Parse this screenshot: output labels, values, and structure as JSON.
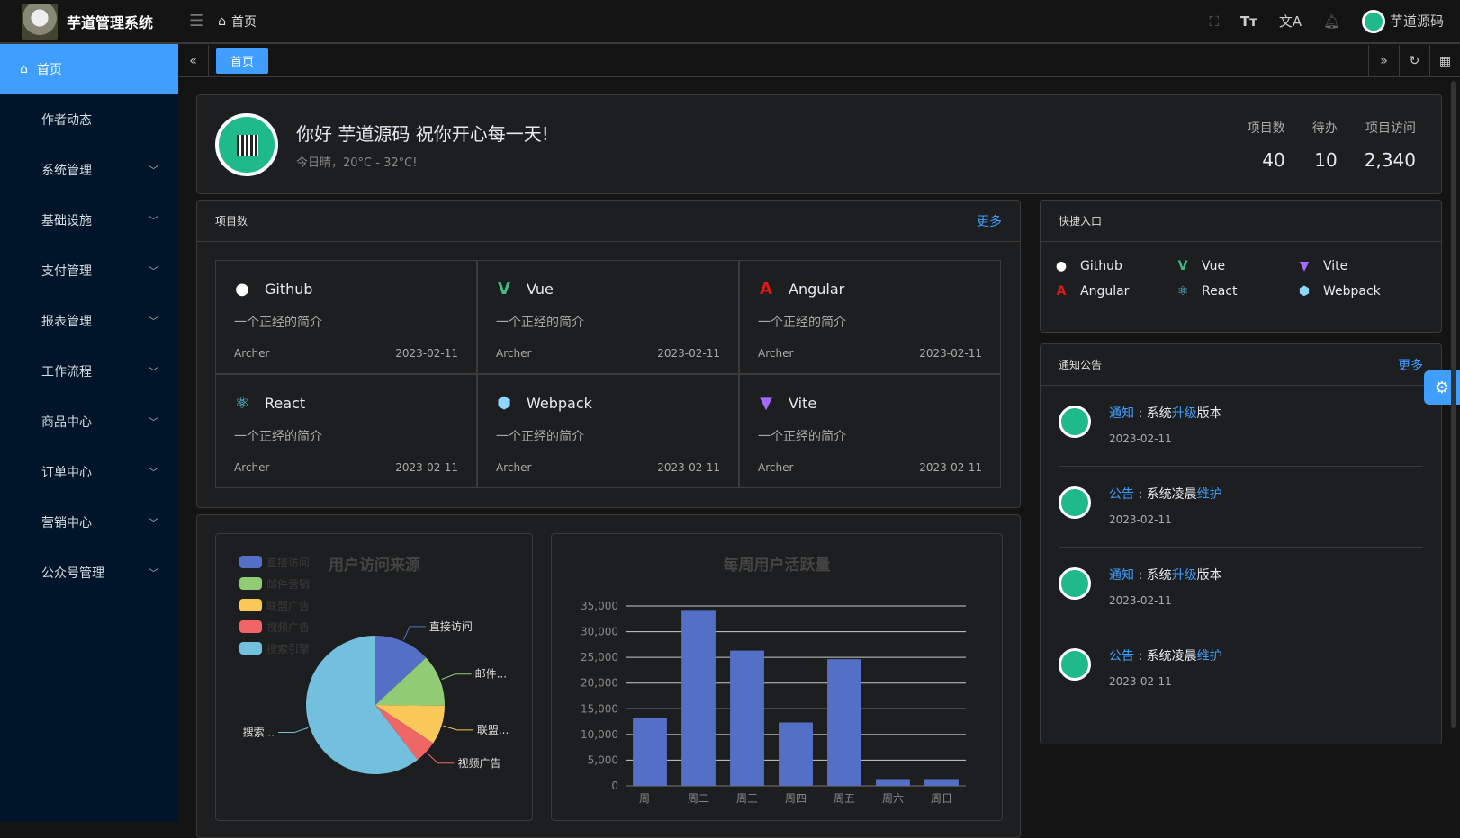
{
  "app": {
    "title": "芋道管理系统"
  },
  "header": {
    "breadcrumb": "首页",
    "user": "芋道源码",
    "icons": [
      "fullscreen-icon",
      "font-size-icon",
      "translate-icon",
      "bell-icon"
    ]
  },
  "sidebar": {
    "items": [
      {
        "label": "首页",
        "active": true
      },
      {
        "label": "作者动态"
      },
      {
        "label": "系统管理",
        "expandable": true
      },
      {
        "label": "基础设施",
        "expandable": true
      },
      {
        "label": "支付管理",
        "expandable": true
      },
      {
        "label": "报表管理",
        "expandable": true
      },
      {
        "label": "工作流程",
        "expandable": true
      },
      {
        "label": "商品中心",
        "expandable": true
      },
      {
        "label": "订单中心",
        "expandable": true
      },
      {
        "label": "营销中心",
        "expandable": true
      },
      {
        "label": "公众号管理",
        "expandable": true
      }
    ]
  },
  "tabs": [
    {
      "label": "首页",
      "active": true
    }
  ],
  "welcome": {
    "greeting": "你好 芋道源码 祝你开心每一天!",
    "weather": "今日晴，20°C - 32°C!",
    "stats": [
      {
        "label": "项目数",
        "value": "40"
      },
      {
        "label": "待办",
        "value": "10"
      },
      {
        "label": "项目访问",
        "value": "2,340"
      }
    ]
  },
  "projects": {
    "title": "项目数",
    "more": "更多",
    "items": [
      {
        "name": "Github",
        "desc": "一个正经的简介",
        "author": "Archer",
        "date": "2023-02-11",
        "icon": "github-icon",
        "color": "#ffffff"
      },
      {
        "name": "Vue",
        "desc": "一个正经的简介",
        "author": "Archer",
        "date": "2023-02-11",
        "icon": "vue-icon",
        "color": "#42b883"
      },
      {
        "name": "Angular",
        "desc": "一个正经的简介",
        "author": "Archer",
        "date": "2023-02-11",
        "icon": "angular-icon",
        "color": "#dd1b16"
      },
      {
        "name": "React",
        "desc": "一个正经的简介",
        "author": "Archer",
        "date": "2023-02-11",
        "icon": "react-icon",
        "color": "#61dafb"
      },
      {
        "name": "Webpack",
        "desc": "一个正经的简介",
        "author": "Archer",
        "date": "2023-02-11",
        "icon": "webpack-icon",
        "color": "#8ed6fb"
      },
      {
        "name": "Vite",
        "desc": "一个正经的简介",
        "author": "Archer",
        "date": "2023-02-11",
        "icon": "vite-icon",
        "color": "#a36bff"
      }
    ]
  },
  "quick": {
    "title": "快捷入口",
    "items": [
      {
        "name": "Github",
        "color": "#ffffff"
      },
      {
        "name": "Vue",
        "color": "#42b883"
      },
      {
        "name": "Vite",
        "color": "#a36bff"
      },
      {
        "name": "Angular",
        "color": "#dd1b16"
      },
      {
        "name": "React",
        "color": "#61dafb"
      },
      {
        "name": "Webpack",
        "color": "#8ed6fb"
      }
    ]
  },
  "notice": {
    "title": "通知公告",
    "more": "更多",
    "items": [
      {
        "type": "通知",
        "pre": "系统",
        "hl": "升级",
        "post": "版本",
        "date": "2023-02-11"
      },
      {
        "type": "公告",
        "pre": "系统凌晨",
        "hl": "维护",
        "post": "",
        "date": "2023-02-11"
      },
      {
        "type": "通知",
        "pre": "系统",
        "hl": "升级",
        "post": "版本",
        "date": "2023-02-11"
      },
      {
        "type": "公告",
        "pre": "系统凌晨",
        "hl": "维护",
        "post": "",
        "date": "2023-02-11"
      }
    ]
  },
  "chart_data": [
    {
      "type": "pie",
      "title": "用户访问来源",
      "legend_position": "top-left",
      "slices": [
        {
          "name": "直接访问",
          "value": 335,
          "color": "#5470c6",
          "label": "直接访问"
        },
        {
          "name": "邮件营销",
          "value": 310,
          "color": "#91cc75",
          "label": "邮件..."
        },
        {
          "name": "联盟广告",
          "value": 234,
          "color": "#fac858",
          "label": "联盟..."
        },
        {
          "name": "视频广告",
          "value": 135,
          "color": "#ee6666",
          "label": "视频广告"
        },
        {
          "name": "搜索引擎",
          "value": 1548,
          "color": "#73c0de",
          "label": "搜索..."
        }
      ]
    },
    {
      "type": "bar",
      "title": "每周用户活跃量",
      "categories": [
        "周一",
        "周二",
        "周三",
        "周四",
        "周五",
        "周六",
        "周日"
      ],
      "values": [
        13253,
        34235,
        26321,
        12340,
        24643,
        1322,
        1324
      ],
      "ylim": [
        0,
        35000
      ],
      "yticks": [
        "0",
        "5,000",
        "10,000",
        "15,000",
        "20,000",
        "25,000",
        "30,000",
        "35,000"
      ],
      "grid": true,
      "color": "#5470c6"
    }
  ]
}
